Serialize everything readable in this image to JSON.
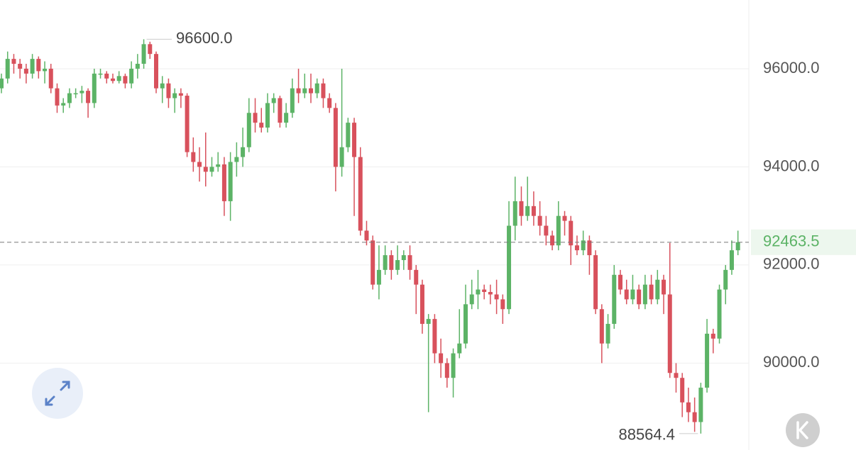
{
  "chart_data": {
    "type": "candlestick",
    "open": [
      95600,
      95800,
      96200,
      96100,
      96000,
      95900,
      96200,
      95950,
      96000,
      95600,
      95250,
      95300,
      95500,
      95500,
      95550,
      95300,
      95900,
      95900,
      95800,
      95750,
      95850,
      95700,
      96000,
      96100,
      96500,
      96300,
      95600,
      95700,
      95400,
      95500,
      95450,
      94300,
      94100,
      94000,
      93900,
      94000,
      94050,
      93300,
      94100,
      94200,
      94400,
      95100,
      94900,
      94800,
      95300,
      95400,
      94900,
      95100,
      95600,
      95500,
      95600,
      95500,
      95700,
      95400,
      95200,
      94000,
      94400,
      94900,
      94200,
      92700,
      92500,
      91600,
      91900,
      92200,
      91900,
      92100,
      92200,
      91900,
      91600,
      90800,
      90900,
      90200,
      90000,
      89700,
      90200,
      90400,
      91200,
      91400,
      91500,
      91450,
      91400,
      91300,
      91100,
      92800,
      93300,
      93000,
      93200,
      93000,
      92800,
      92600,
      92400,
      93000,
      92900,
      92400,
      92300,
      92500,
      92200,
      91100,
      90400,
      90800,
      91800,
      91500,
      91300,
      91500,
      91200,
      91600,
      91300,
      91700,
      91400,
      89800,
      89700,
      89200,
      89000,
      88800,
      89500,
      90600,
      90500,
      91500,
      91900,
      92300
    ],
    "high": [
      95900,
      96350,
      96300,
      96200,
      96100,
      96300,
      96250,
      96150,
      96100,
      95700,
      95400,
      95600,
      95600,
      95650,
      95600,
      96000,
      96000,
      95950,
      95900,
      95950,
      95900,
      96150,
      96300,
      96600,
      96550,
      96350,
      95850,
      95800,
      95600,
      95600,
      95500,
      94600,
      94400,
      94700,
      94200,
      94300,
      94200,
      94300,
      94500,
      94800,
      95400,
      95400,
      95200,
      95500,
      95500,
      95450,
      95300,
      95800,
      96000,
      95900,
      95900,
      95800,
      95800,
      95500,
      95300,
      96000,
      95000,
      95000,
      94400,
      92900,
      92600,
      92400,
      92400,
      92300,
      92400,
      92300,
      92400,
      92000,
      91700,
      91000,
      91000,
      90500,
      90100,
      90300,
      91100,
      91600,
      91700,
      91900,
      91600,
      91600,
      91700,
      91400,
      93300,
      93800,
      93600,
      93800,
      93500,
      93300,
      93000,
      92700,
      93300,
      93100,
      93000,
      92600,
      92700,
      92600,
      92300,
      91200,
      91000,
      92000,
      91900,
      91700,
      91800,
      91600,
      91800,
      91800,
      91900,
      91800,
      92450,
      90000,
      89800,
      89500,
      89300,
      89600,
      90900,
      90700,
      91600,
      92000,
      92500,
      92700
    ],
    "low": [
      95500,
      95700,
      95900,
      95800,
      95700,
      95800,
      95800,
      95700,
      95500,
      95100,
      95100,
      95200,
      95400,
      95300,
      95000,
      95200,
      95800,
      95700,
      95700,
      95700,
      95600,
      95600,
      95800,
      96000,
      96200,
      95500,
      95300,
      95200,
      95100,
      95200,
      94200,
      93900,
      93700,
      93600,
      93800,
      93900,
      93000,
      92900,
      93800,
      94000,
      94300,
      94700,
      94700,
      94700,
      95100,
      94800,
      94800,
      95000,
      95300,
      95400,
      95300,
      95400,
      95200,
      95100,
      93500,
      93800,
      94300,
      93000,
      92600,
      92400,
      91500,
      91300,
      91800,
      91700,
      91800,
      91900,
      91700,
      91000,
      90600,
      89000,
      90000,
      89700,
      89500,
      89300,
      90100,
      90300,
      91100,
      91100,
      91300,
      91200,
      91000,
      90800,
      91000,
      92500,
      92800,
      92900,
      92800,
      92600,
      92400,
      92300,
      92300,
      92600,
      92000,
      92200,
      92200,
      91800,
      91000,
      90000,
      90300,
      90700,
      91400,
      91200,
      91200,
      91100,
      91100,
      91200,
      91200,
      91000,
      89700,
      89400,
      88900,
      88800,
      88600,
      88564.4,
      89400,
      90200,
      90400,
      91200,
      91800,
      92200
    ],
    "close": [
      95800,
      96200,
      96100,
      96000,
      95900,
      96200,
      95950,
      96000,
      95600,
      95250,
      95300,
      95500,
      95500,
      95550,
      95300,
      95900,
      95900,
      95800,
      95750,
      95850,
      95700,
      96000,
      96100,
      96500,
      96300,
      95600,
      95700,
      95400,
      95500,
      95450,
      94300,
      94100,
      94000,
      93900,
      94000,
      94050,
      93300,
      94100,
      94200,
      94400,
      95100,
      94900,
      94800,
      95300,
      95400,
      94900,
      95100,
      95600,
      95500,
      95600,
      95500,
      95700,
      95400,
      95200,
      94000,
      94400,
      94900,
      94200,
      92700,
      92500,
      91600,
      91900,
      92200,
      91900,
      92100,
      92200,
      91900,
      91600,
      90800,
      90900,
      90200,
      90000,
      89700,
      90200,
      90400,
      91200,
      91400,
      91500,
      91450,
      91400,
      91300,
      91100,
      92800,
      93300,
      93000,
      93200,
      93000,
      92800,
      92600,
      92400,
      93000,
      92900,
      92400,
      92300,
      92500,
      92200,
      91100,
      90400,
      90800,
      91800,
      91500,
      91300,
      91500,
      91200,
      91600,
      91300,
      91700,
      91400,
      89800,
      89700,
      89200,
      89000,
      88800,
      89500,
      90600,
      90500,
      91500,
      91900,
      92300,
      92463.5
    ],
    "up_color": "#5cb366",
    "down_color": "#d8515c",
    "ylim": [
      88230,
      97400
    ],
    "yticks": [
      {
        "value": 90000,
        "label": "90000.0"
      },
      {
        "value": 92000,
        "label": "92000.0"
      },
      {
        "value": 94000,
        "label": "94000.0"
      },
      {
        "value": 96000,
        "label": "96000.0"
      }
    ],
    "grid": true,
    "max_label": "96600.0"
  }
}
